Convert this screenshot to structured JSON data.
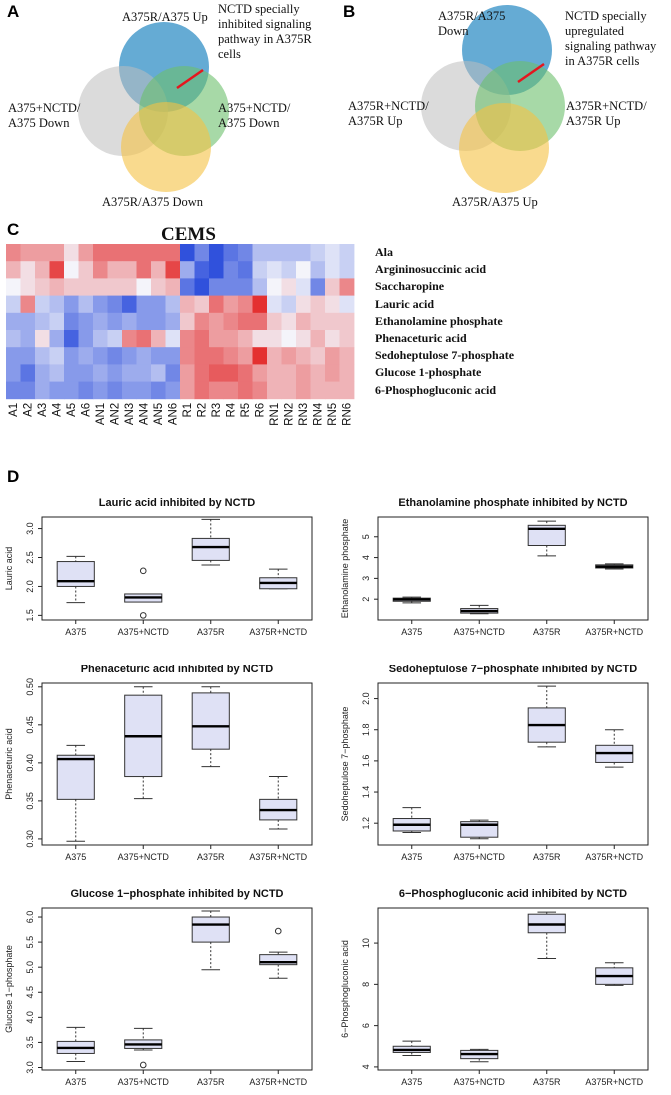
{
  "panels": {
    "A": {
      "letter": "A",
      "circle_colors": [
        "#2a8bc4",
        "#bdbdbd",
        "#6cbf6c",
        "#f5c242"
      ],
      "labels": {
        "top": "A375R/A375 Up",
        "left_line1": "A375+NCTD/",
        "left_line2": "A375 Down",
        "right_line1": "A375+NCTD/",
        "right_line2": "A375 Down",
        "bottom": "A375R/A375 Down",
        "note_line1": "NCTD  specially",
        "note_line2": "inhibited  signaling",
        "note_line3": "pathway   in A375R",
        "note_line4": "cells"
      }
    },
    "B": {
      "letter": "B",
      "circle_colors": [
        "#2a8bc4",
        "#bdbdbd",
        "#6cbf6c",
        "#f5c242"
      ],
      "labels": {
        "top_line1": "A375R/A375",
        "top_line2": "Down",
        "left_line1": "A375R+NCTD/",
        "left_line2": "A375R Up",
        "right_line1": "A375R+NCTD/",
        "right_line2": "A375R Up",
        "bottom": "A375R/A375 Up",
        "note_line1": "NCTD   specially",
        "note_line2": "upregulated",
        "note_line3": "signaling pathway",
        "note_line4": "in A375R cells"
      }
    },
    "C": {
      "letter": "C",
      "title": "CEMS",
      "row_labels": [
        "Ala",
        "Argininosuccinic acid",
        "Saccharopine",
        "Lauric acid",
        "Ethanolamine  phosphate",
        "Phenaceturic acid",
        "Sedoheptulose  7-phosphate",
        "Glucose 1-phosphate",
        "6-Phosphogluconic acid"
      ],
      "column_labels": [
        "A1",
        "A2",
        "A3",
        "A4",
        "A5",
        "A6",
        "AN1",
        "AN2",
        "AN3",
        "AN4",
        "AN5",
        "AN6",
        "R1",
        "R2",
        "R3",
        "R4",
        "R5",
        "R6",
        "RN1",
        "RN2",
        "RN3",
        "RN4",
        "RN5",
        "RN6"
      ],
      "matrix": [
        [
          0.5,
          0.4,
          0.4,
          0.4,
          0.1,
          0.4,
          0.6,
          0.6,
          0.6,
          0.6,
          0.6,
          0.6,
          -0.9,
          -0.6,
          -0.9,
          -0.7,
          -0.6,
          -0.3,
          -0.3,
          -0.3,
          -0.3,
          -0.2,
          -0.1,
          -0.2
        ],
        [
          0.3,
          0.1,
          0.3,
          0.8,
          0.0,
          0.2,
          0.5,
          0.3,
          0.3,
          0.6,
          0.3,
          0.8,
          -0.4,
          -0.8,
          -0.9,
          -0.6,
          -0.7,
          -0.2,
          -0.1,
          -0.2,
          0.0,
          -0.3,
          -0.1,
          -0.2
        ],
        [
          0.0,
          0.1,
          0.2,
          0.3,
          0.2,
          0.2,
          0.2,
          0.2,
          0.2,
          0.0,
          0.2,
          0.3,
          -0.7,
          -0.9,
          -0.6,
          -0.6,
          -0.6,
          -0.3,
          0.0,
          0.1,
          -0.1,
          -0.6,
          0.2,
          0.5
        ],
        [
          -0.2,
          0.5,
          -0.2,
          -0.3,
          -0.5,
          -0.3,
          -0.5,
          -0.6,
          -0.8,
          -0.5,
          -0.5,
          -0.3,
          0.3,
          0.2,
          0.6,
          0.4,
          0.5,
          0.9,
          -0.1,
          -0.2,
          0.1,
          0.2,
          0.1,
          -0.1
        ],
        [
          -0.4,
          -0.4,
          -0.3,
          -0.2,
          -0.6,
          -0.5,
          -0.4,
          -0.5,
          -0.4,
          -0.5,
          -0.5,
          -0.4,
          0.2,
          0.5,
          0.4,
          0.5,
          0.6,
          0.6,
          0.2,
          0.1,
          0.3,
          0.2,
          0.2,
          0.2
        ],
        [
          -0.3,
          -0.4,
          0.1,
          -0.4,
          -0.8,
          -0.5,
          -0.3,
          -0.2,
          0.5,
          0.6,
          0.3,
          -0.1,
          0.5,
          0.6,
          0.4,
          0.4,
          0.3,
          0.1,
          0.1,
          0.0,
          0.1,
          0.3,
          0.1,
          0.2
        ],
        [
          -0.5,
          -0.5,
          -0.3,
          -0.2,
          -0.5,
          -0.4,
          -0.5,
          -0.6,
          -0.5,
          -0.4,
          -0.5,
          -0.5,
          0.5,
          0.6,
          0.6,
          0.5,
          0.4,
          0.9,
          0.3,
          0.4,
          0.3,
          0.2,
          0.4,
          0.3
        ],
        [
          -0.5,
          -0.7,
          -0.4,
          -0.3,
          -0.5,
          -0.5,
          -0.4,
          -0.5,
          -0.4,
          -0.4,
          -0.3,
          -0.6,
          0.4,
          0.6,
          0.7,
          0.7,
          0.6,
          0.4,
          0.3,
          0.3,
          0.4,
          0.3,
          0.4,
          0.3
        ],
        [
          -0.6,
          -0.6,
          -0.4,
          -0.5,
          -0.5,
          -0.6,
          -0.5,
          -0.6,
          -0.5,
          -0.5,
          -0.6,
          -0.5,
          0.4,
          0.6,
          0.5,
          0.5,
          0.6,
          0.5,
          0.3,
          0.3,
          0.4,
          0.3,
          0.3,
          0.3
        ]
      ],
      "colors": {
        "low": "#1a3fd9",
        "mid": "#f4f4fa",
        "high": "#e21a1a"
      }
    },
    "D": {
      "letter": "D"
    }
  },
  "chart_data": [
    {
      "type": "box",
      "title": "Lauric acid inhibited by NCTD",
      "ylabel": "Lauric acid",
      "categories": [
        "A375",
        "A375+NCTD",
        "A375R",
        "A375R+NCTD"
      ],
      "ylim": [
        1.42,
        3.2
      ],
      "yticks": [
        1.5,
        2.0,
        2.5,
        3.0
      ],
      "tick_labels": [
        "1.5",
        "2.0",
        "2.5",
        "3.0"
      ],
      "boxes": [
        {
          "min": 1.72,
          "q1": 2.0,
          "median": 2.09,
          "q3": 2.43,
          "max": 2.52,
          "outliers": []
        },
        {
          "min": 1.73,
          "q1": 1.73,
          "median": 1.81,
          "q3": 1.87,
          "max": 1.87,
          "outliers": [
            2.27,
            1.5
          ]
        },
        {
          "min": 2.37,
          "q1": 2.45,
          "median": 2.68,
          "q3": 2.83,
          "max": 3.16,
          "outliers": []
        },
        {
          "min": 1.96,
          "q1": 1.96,
          "median": 2.06,
          "q3": 2.15,
          "max": 2.3,
          "outliers": []
        }
      ]
    },
    {
      "type": "box",
      "title": "Ethanolamine phosphate inhibited by NCTD",
      "ylabel": "Ethanolamine phosphate",
      "categories": [
        "A375",
        "A375+NCTD",
        "A375R",
        "A375R+NCTD"
      ],
      "ylim": [
        1.0,
        5.95
      ],
      "yticks": [
        2,
        3,
        4,
        5
      ],
      "tick_labels": [
        "2",
        "3",
        "4",
        "5"
      ],
      "boxes": [
        {
          "min": 1.82,
          "q1": 1.9,
          "median": 1.99,
          "q3": 2.05,
          "max": 2.1,
          "outliers": []
        },
        {
          "min": 1.3,
          "q1": 1.33,
          "median": 1.43,
          "q3": 1.55,
          "max": 1.7,
          "outliers": []
        },
        {
          "min": 4.08,
          "q1": 4.58,
          "median": 5.38,
          "q3": 5.55,
          "max": 5.75,
          "outliers": []
        },
        {
          "min": 3.45,
          "q1": 3.5,
          "median": 3.56,
          "q3": 3.65,
          "max": 3.7,
          "outliers": []
        }
      ]
    },
    {
      "type": "box",
      "title": "Phenaceturic acid inhibited by NCTD",
      "ylabel": "Phenaceturic acid",
      "categories": [
        "A375",
        "A375+NCTD",
        "A375R",
        "A375R+NCTD"
      ],
      "ylim": [
        0.292,
        0.505
      ],
      "yticks": [
        0.3,
        0.35,
        0.4,
        0.45,
        0.5
      ],
      "tick_labels": [
        "0.30",
        "0.35",
        "0.40",
        "0.45",
        "0.50"
      ],
      "boxes": [
        {
          "min": 0.297,
          "q1": 0.352,
          "median": 0.405,
          "q3": 0.41,
          "max": 0.423,
          "outliers": []
        },
        {
          "min": 0.353,
          "q1": 0.382,
          "median": 0.435,
          "q3": 0.489,
          "max": 0.5,
          "outliers": []
        },
        {
          "min": 0.395,
          "q1": 0.418,
          "median": 0.448,
          "q3": 0.492,
          "max": 0.5,
          "outliers": []
        },
        {
          "min": 0.313,
          "q1": 0.325,
          "median": 0.338,
          "q3": 0.352,
          "max": 0.382,
          "outliers": []
        }
      ]
    },
    {
      "type": "box",
      "title": "Sedoheptulose 7−phosphate inhibited by NCTD",
      "ylabel": "Sedoheptulose 7−phosphate",
      "categories": [
        "A375",
        "A375+NCTD",
        "A375R",
        "A375R+NCTD"
      ],
      "ylim": [
        1.06,
        2.1
      ],
      "yticks": [
        1.2,
        1.4,
        1.6,
        1.8,
        2.0
      ],
      "tick_labels": [
        "1.2",
        "1.4",
        "1.6",
        "1.8",
        "2.0"
      ],
      "boxes": [
        {
          "min": 1.14,
          "q1": 1.15,
          "median": 1.19,
          "q3": 1.23,
          "max": 1.3,
          "outliers": []
        },
        {
          "min": 1.1,
          "q1": 1.11,
          "median": 1.19,
          "q3": 1.21,
          "max": 1.22,
          "outliers": []
        },
        {
          "min": 1.69,
          "q1": 1.72,
          "median": 1.83,
          "q3": 1.94,
          "max": 2.08,
          "outliers": []
        },
        {
          "min": 1.56,
          "q1": 1.59,
          "median": 1.65,
          "q3": 1.7,
          "max": 1.8,
          "outliers": []
        }
      ]
    },
    {
      "type": "box",
      "title": "Glucose 1−phosphate inhibited by NCTD",
      "ylabel": "Glucose 1−phosphate",
      "categories": [
        "A375",
        "A375+NCTD",
        "A375R",
        "A375R+NCTD"
      ],
      "ylim": [
        2.95,
        6.18
      ],
      "yticks": [
        3.0,
        3.5,
        4.0,
        4.5,
        5.0,
        5.5,
        6.0
      ],
      "tick_labels": [
        "3.0",
        "3.5",
        "4.0",
        "4.5",
        "5.0",
        "5.5",
        "6.0"
      ],
      "boxes": [
        {
          "min": 3.12,
          "q1": 3.28,
          "median": 3.39,
          "q3": 3.52,
          "max": 3.8,
          "outliers": []
        },
        {
          "min": 3.35,
          "q1": 3.38,
          "median": 3.46,
          "q3": 3.55,
          "max": 3.78,
          "outliers": [
            3.05
          ]
        },
        {
          "min": 4.95,
          "q1": 5.5,
          "median": 5.85,
          "q3": 6.0,
          "max": 6.12,
          "outliers": []
        },
        {
          "min": 4.78,
          "q1": 5.05,
          "median": 5.1,
          "q3": 5.25,
          "max": 5.3,
          "outliers": [
            5.72
          ]
        }
      ]
    },
    {
      "type": "box",
      "title": "6−Phosphogluconic acid inhibited by NCTD",
      "ylabel": "6−Phosphogluconic acid",
      "categories": [
        "A375",
        "A375+NCTD",
        "A375R",
        "A375R+NCTD"
      ],
      "ylim": [
        3.85,
        11.7
      ],
      "yticks": [
        4,
        6,
        8,
        10
      ],
      "tick_labels": [
        "4",
        "6",
        "8",
        "10"
      ],
      "boxes": [
        {
          "min": 4.55,
          "q1": 4.7,
          "median": 4.82,
          "q3": 5.0,
          "max": 5.25,
          "outliers": []
        },
        {
          "min": 4.25,
          "q1": 4.4,
          "median": 4.62,
          "q3": 4.8,
          "max": 4.85,
          "outliers": []
        },
        {
          "min": 9.25,
          "q1": 10.5,
          "median": 10.9,
          "q3": 11.4,
          "max": 11.5,
          "outliers": []
        },
        {
          "min": 7.95,
          "q1": 8.0,
          "median": 8.4,
          "q3": 8.8,
          "max": 9.05,
          "outliers": []
        }
      ]
    }
  ]
}
